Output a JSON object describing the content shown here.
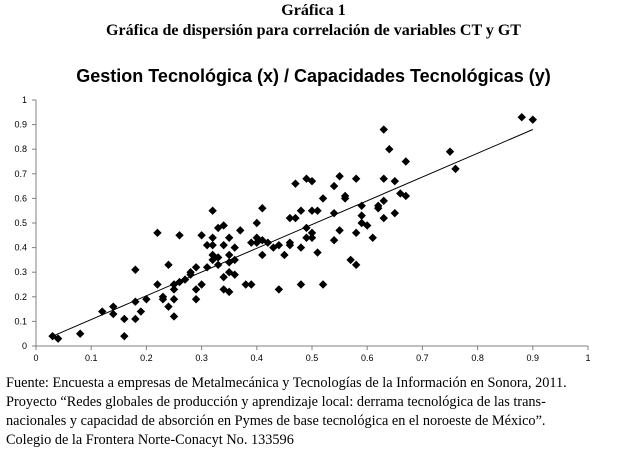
{
  "header": {
    "figure_number": "Gráfica 1",
    "figure_title": "Gráfica de dispersión para correlación de variables CT y GT"
  },
  "footer": {
    "lines": [
      "Fuente: Encuesta a empresas de Metalmecánica y Tecnologías de la Información en Sonora, 2011.",
      "Proyecto “Redes globales de producción y aprendizaje local: derrama tecnológica de las trans-",
      "nacionales y capacidad de absorción en Pymes de base tecnológica en el noroeste de México”.",
      "Colegio de la Frontera Norte-Conacyt No. 133596"
    ]
  },
  "chart_data": {
    "type": "scatter",
    "title": "Gestion Tecnológica (x) / Capacidades Tecnológicas (y)",
    "xlabel": "",
    "ylabel": "",
    "xlim": [
      0,
      1
    ],
    "ylim": [
      0,
      1
    ],
    "x_ticks": [
      "0",
      "0.1",
      "0.2",
      "0.3",
      "0.4",
      "0.5",
      "0.6",
      "0.7",
      "0.8",
      "0.9",
      "1"
    ],
    "y_ticks": [
      "0",
      "0.1",
      "0.2",
      "0.3",
      "0.4",
      "0.5",
      "0.6",
      "0.7",
      "0.8",
      "0.9",
      "1"
    ],
    "grid": false,
    "marker": "diamond",
    "marker_color": "#000000",
    "trendline": {
      "x": [
        0.03,
        0.9
      ],
      "y": [
        0.04,
        0.88
      ]
    },
    "series": [
      {
        "points": [
          [
            0.03,
            0.04
          ],
          [
            0.04,
            0.03
          ],
          [
            0.08,
            0.05
          ],
          [
            0.12,
            0.14
          ],
          [
            0.14,
            0.16
          ],
          [
            0.14,
            0.13
          ],
          [
            0.16,
            0.11
          ],
          [
            0.16,
            0.04
          ],
          [
            0.18,
            0.31
          ],
          [
            0.18,
            0.11
          ],
          [
            0.19,
            0.14
          ],
          [
            0.18,
            0.18
          ],
          [
            0.2,
            0.19
          ],
          [
            0.22,
            0.46
          ],
          [
            0.22,
            0.25
          ],
          [
            0.23,
            0.2
          ],
          [
            0.23,
            0.19
          ],
          [
            0.24,
            0.33
          ],
          [
            0.24,
            0.16
          ],
          [
            0.25,
            0.25
          ],
          [
            0.25,
            0.23
          ],
          [
            0.25,
            0.12
          ],
          [
            0.25,
            0.19
          ],
          [
            0.26,
            0.45
          ],
          [
            0.26,
            0.26
          ],
          [
            0.27,
            0.27
          ],
          [
            0.28,
            0.29
          ],
          [
            0.28,
            0.3
          ],
          [
            0.29,
            0.32
          ],
          [
            0.29,
            0.23
          ],
          [
            0.29,
            0.19
          ],
          [
            0.3,
            0.45
          ],
          [
            0.3,
            0.25
          ],
          [
            0.31,
            0.41
          ],
          [
            0.31,
            0.32
          ],
          [
            0.32,
            0.55
          ],
          [
            0.32,
            0.44
          ],
          [
            0.32,
            0.35
          ],
          [
            0.32,
            0.41
          ],
          [
            0.32,
            0.37
          ],
          [
            0.33,
            0.33
          ],
          [
            0.33,
            0.36
          ],
          [
            0.33,
            0.48
          ],
          [
            0.34,
            0.49
          ],
          [
            0.34,
            0.41
          ],
          [
            0.34,
            0.28
          ],
          [
            0.34,
            0.23
          ],
          [
            0.35,
            0.44
          ],
          [
            0.35,
            0.37
          ],
          [
            0.35,
            0.34
          ],
          [
            0.35,
            0.3
          ],
          [
            0.35,
            0.22
          ],
          [
            0.36,
            0.4
          ],
          [
            0.36,
            0.35
          ],
          [
            0.36,
            0.29
          ],
          [
            0.37,
            0.47
          ],
          [
            0.38,
            0.25
          ],
          [
            0.39,
            0.25
          ],
          [
            0.39,
            0.42
          ],
          [
            0.4,
            0.42
          ],
          [
            0.4,
            0.44
          ],
          [
            0.4,
            0.5
          ],
          [
            0.41,
            0.43
          ],
          [
            0.41,
            0.37
          ],
          [
            0.41,
            0.56
          ],
          [
            0.42,
            0.42
          ],
          [
            0.43,
            0.4
          ],
          [
            0.44,
            0.41
          ],
          [
            0.44,
            0.23
          ],
          [
            0.45,
            0.37
          ],
          [
            0.46,
            0.52
          ],
          [
            0.46,
            0.42
          ],
          [
            0.46,
            0.41
          ],
          [
            0.47,
            0.66
          ],
          [
            0.47,
            0.52
          ],
          [
            0.48,
            0.55
          ],
          [
            0.48,
            0.4
          ],
          [
            0.48,
            0.25
          ],
          [
            0.49,
            0.68
          ],
          [
            0.49,
            0.48
          ],
          [
            0.49,
            0.44
          ],
          [
            0.5,
            0.67
          ],
          [
            0.5,
            0.55
          ],
          [
            0.5,
            0.46
          ],
          [
            0.5,
            0.44
          ],
          [
            0.51,
            0.55
          ],
          [
            0.51,
            0.38
          ],
          [
            0.52,
            0.6
          ],
          [
            0.52,
            0.25
          ],
          [
            0.54,
            0.65
          ],
          [
            0.54,
            0.54
          ],
          [
            0.54,
            0.43
          ],
          [
            0.55,
            0.69
          ],
          [
            0.55,
            0.47
          ],
          [
            0.56,
            0.61
          ],
          [
            0.56,
            0.6
          ],
          [
            0.57,
            0.35
          ],
          [
            0.58,
            0.68
          ],
          [
            0.58,
            0.46
          ],
          [
            0.58,
            0.33
          ],
          [
            0.59,
            0.57
          ],
          [
            0.59,
            0.53
          ],
          [
            0.59,
            0.5
          ],
          [
            0.6,
            0.49
          ],
          [
            0.61,
            0.44
          ],
          [
            0.62,
            0.57
          ],
          [
            0.62,
            0.56
          ],
          [
            0.63,
            0.88
          ],
          [
            0.63,
            0.68
          ],
          [
            0.63,
            0.59
          ],
          [
            0.63,
            0.52
          ],
          [
            0.64,
            0.8
          ],
          [
            0.65,
            0.67
          ],
          [
            0.65,
            0.54
          ],
          [
            0.66,
            0.62
          ],
          [
            0.67,
            0.75
          ],
          [
            0.67,
            0.61
          ],
          [
            0.75,
            0.79
          ],
          [
            0.76,
            0.72
          ],
          [
            0.88,
            0.93
          ],
          [
            0.9,
            0.92
          ]
        ]
      }
    ]
  }
}
